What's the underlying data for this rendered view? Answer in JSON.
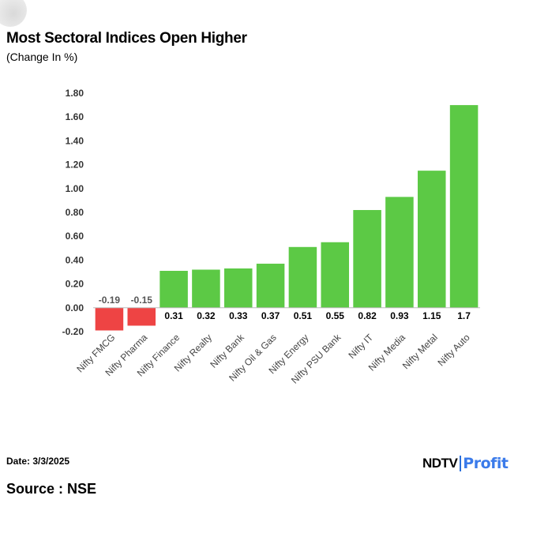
{
  "title": "Most Sectoral Indices Open Higher",
  "subtitle": "(Change In %)",
  "footer": {
    "date": "Date: 3/3/2025",
    "source": "Source : NSE",
    "brand_ndtv": "NDTV",
    "brand_profit": "Profit"
  },
  "colors": {
    "positive": "#5cc945",
    "negative": "#ee4444",
    "grid": "#e6e6e6"
  },
  "y_ticks": [
    "1.80",
    "1.60",
    "1.40",
    "1.20",
    "1.00",
    "0.80",
    "0.60",
    "0.40",
    "0.20",
    "0.00",
    "-0.20"
  ],
  "chart_data": {
    "type": "bar",
    "title": "Most Sectoral Indices Open Higher",
    "subtitle": "(Change In %)",
    "xlabel": "",
    "ylabel": "",
    "ylim": [
      -0.2,
      1.8
    ],
    "grid": false,
    "categories": [
      "Nifty FMCG",
      "Nifty Pharma",
      "Nifty Finance",
      "Nifty Realty",
      "Nifty Bank",
      "Nifty Oil & Gas",
      "Nifty Energy",
      "Nifty PSU Bank",
      "Nifty IT",
      "Nifty Media",
      "Nifty Metal",
      "Nifty Auto"
    ],
    "values": [
      -0.19,
      -0.15,
      0.31,
      0.32,
      0.33,
      0.37,
      0.51,
      0.55,
      0.82,
      0.93,
      1.15,
      1.7
    ],
    "labels": [
      "-0.19",
      "-0.15",
      "0.31",
      "0.32",
      "0.33",
      "0.37",
      "0.51",
      "0.55",
      "0.82",
      "0.93",
      "1.15",
      "1.7"
    ]
  }
}
